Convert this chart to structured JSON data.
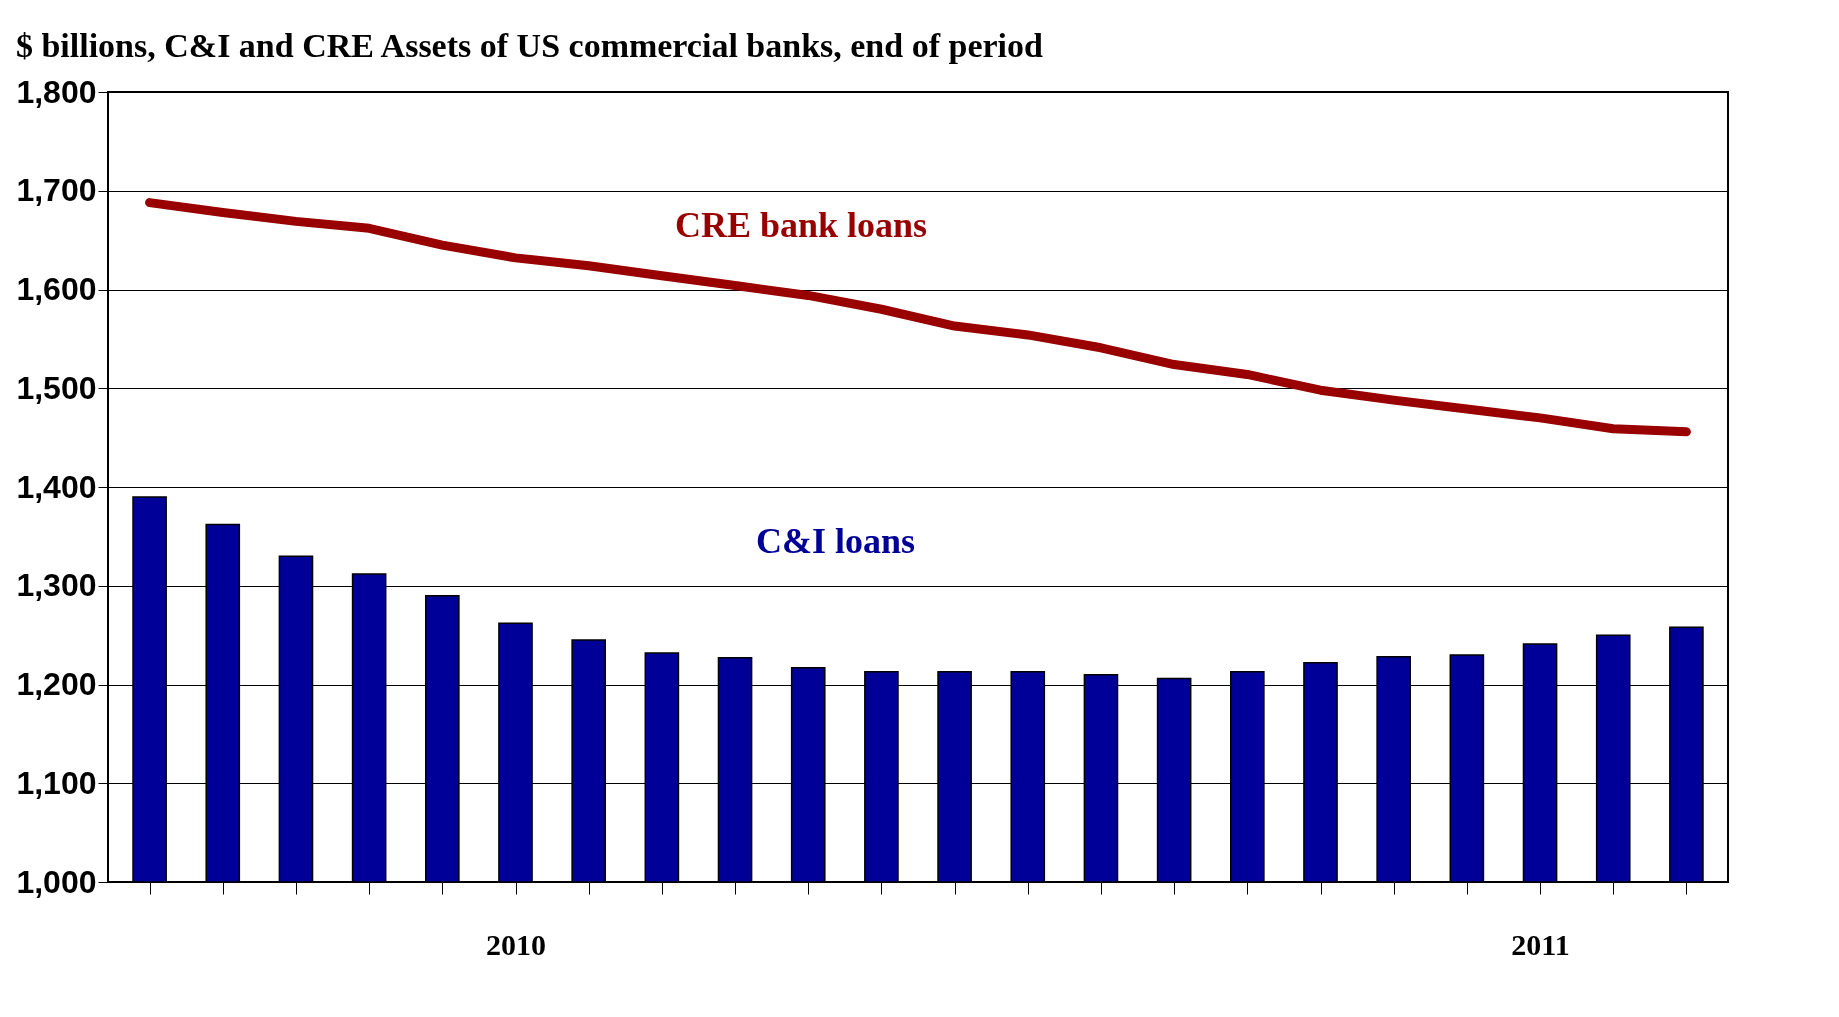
{
  "chart_data": {
    "type": "bar",
    "title": "$ billions, C&I and CRE Assets of US commercial banks, end of period",
    "categories": [
      null,
      null,
      null,
      null,
      null,
      "2010",
      null,
      null,
      null,
      null,
      null,
      null,
      null,
      null,
      null,
      null,
      null,
      null,
      null,
      "2011",
      null,
      null
    ],
    "series": [
      {
        "name": "C&I loans",
        "color": "#000099",
        "values": [
          1390,
          1362,
          1330,
          1312,
          1290,
          1262,
          1245,
          1232,
          1227,
          1217,
          1213,
          1213,
          1213,
          1210,
          1206,
          1213,
          1222,
          1228,
          1230,
          1241,
          1250,
          1258
        ]
      },
      {
        "name": "CRE bank loans",
        "type": "line",
        "color": "#990000",
        "values": [
          1688,
          1678,
          1669,
          1662,
          1645,
          1632,
          1624,
          1614,
          1604,
          1594,
          1580,
          1563,
          1554,
          1541,
          1524,
          1514,
          1498,
          1488,
          1479,
          1470,
          1459,
          1456
        ]
      }
    ],
    "ylim": [
      1000,
      1800
    ],
    "yticks": [
      {
        "value": 1000,
        "label": "1,000"
      },
      {
        "value": 1100,
        "label": "1,100"
      },
      {
        "value": 1200,
        "label": "1,200"
      },
      {
        "value": 1300,
        "label": "1,300"
      },
      {
        "value": 1400,
        "label": "1,400"
      },
      {
        "value": 1500,
        "label": "1,500"
      },
      {
        "value": 1600,
        "label": "1,600"
      },
      {
        "value": 1700,
        "label": "1,700"
      },
      {
        "value": 1800,
        "label": "1,800"
      }
    ],
    "grid": "y",
    "legend": false
  }
}
